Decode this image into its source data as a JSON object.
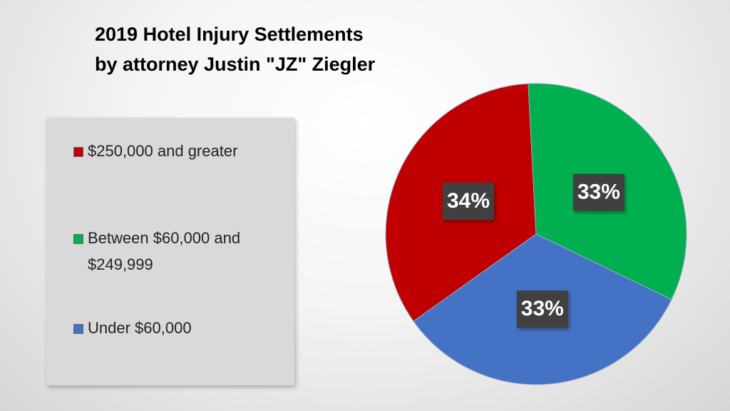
{
  "chart_data": {
    "type": "pie",
    "title": [
      "2019 Hotel Injury Settlements",
      "by attorney Justin \"JZ\" Ziegler"
    ],
    "categories": [
      "$250,000 and greater",
      "Between $60,000 and $249,999",
      "Under $60,000"
    ],
    "values": [
      34,
      33,
      33
    ],
    "value_labels": [
      "34%",
      "33%",
      "33%"
    ],
    "colors": [
      "#c00000",
      "#00b050",
      "#4472c4"
    ]
  }
}
